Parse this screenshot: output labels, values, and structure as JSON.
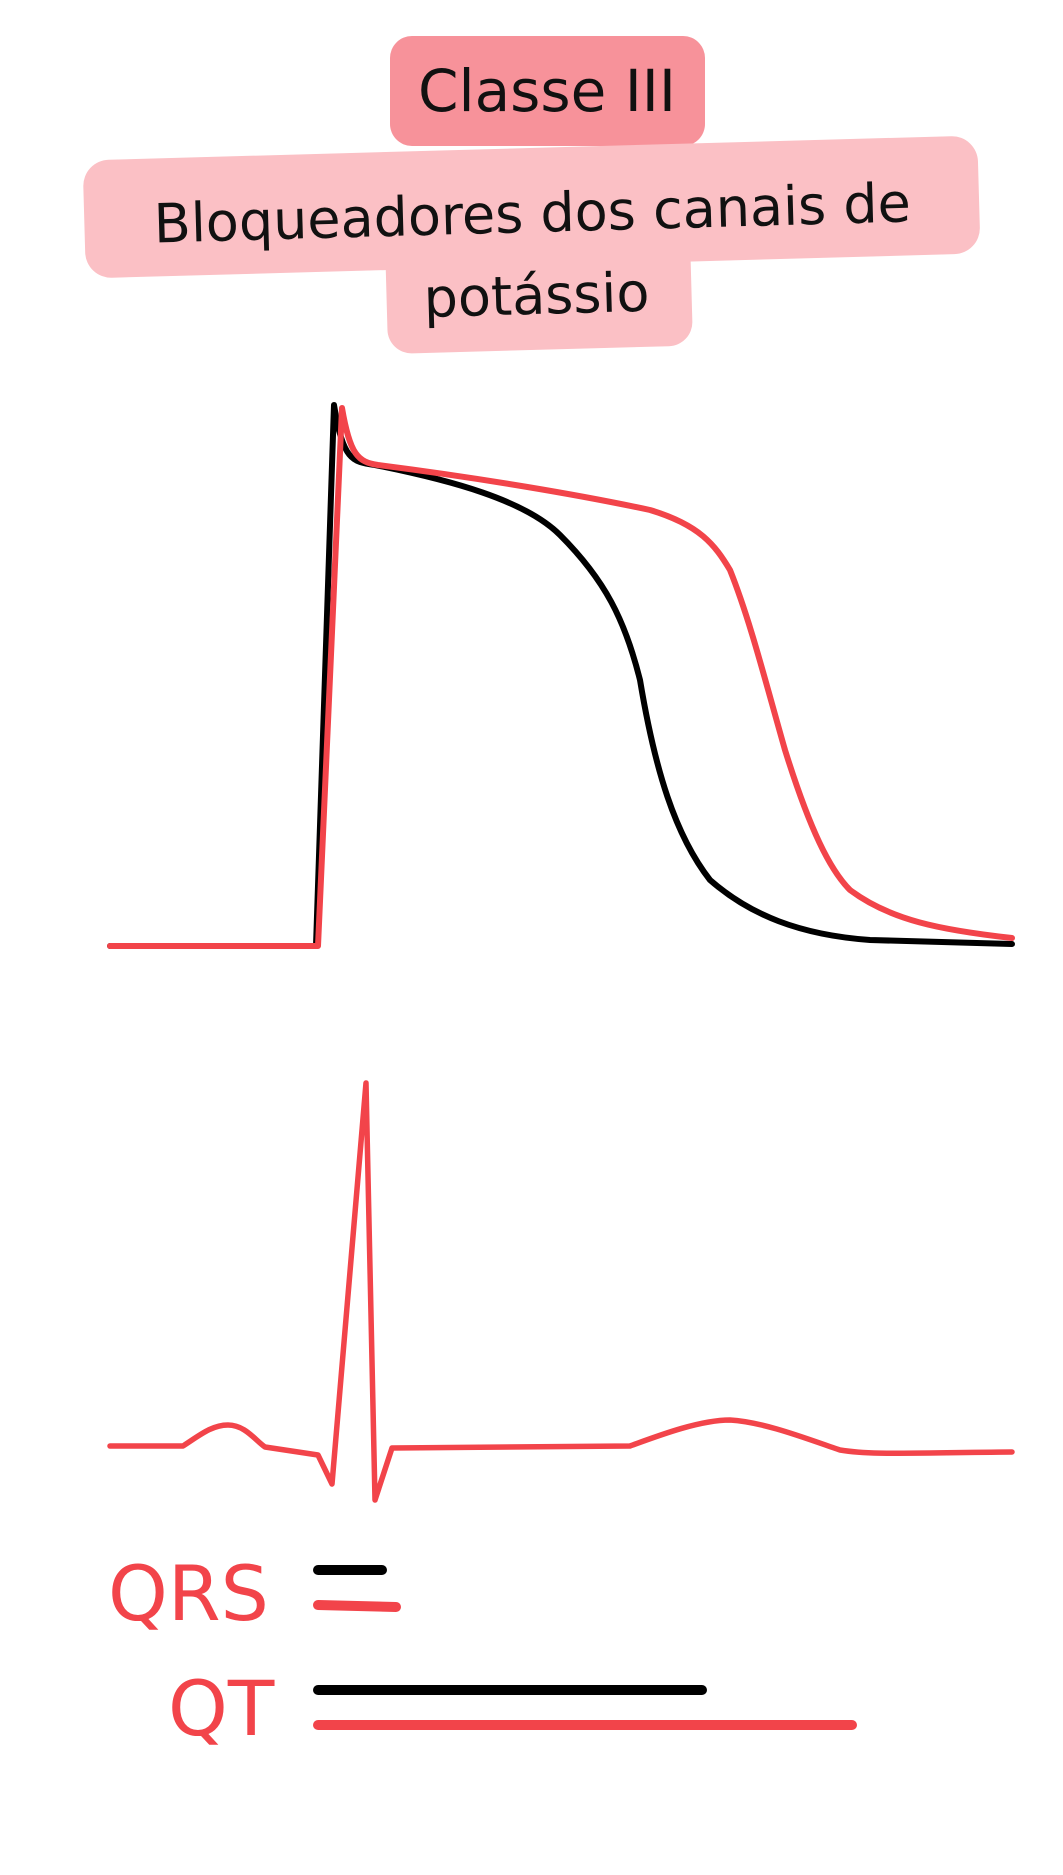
{
  "header": {
    "class_label": "Classe III",
    "title_line1": "Bloqueadores dos canais de",
    "title_line2": "potássio",
    "class_badge_color": "#f7929a",
    "title_badge_color": "#fbc0c5"
  },
  "colors": {
    "baseline": "#000000",
    "drug": "#f2444a",
    "ecg": "#f2444a"
  },
  "legend": {
    "qrs_label": "QRS",
    "qt_label": "QT"
  }
}
